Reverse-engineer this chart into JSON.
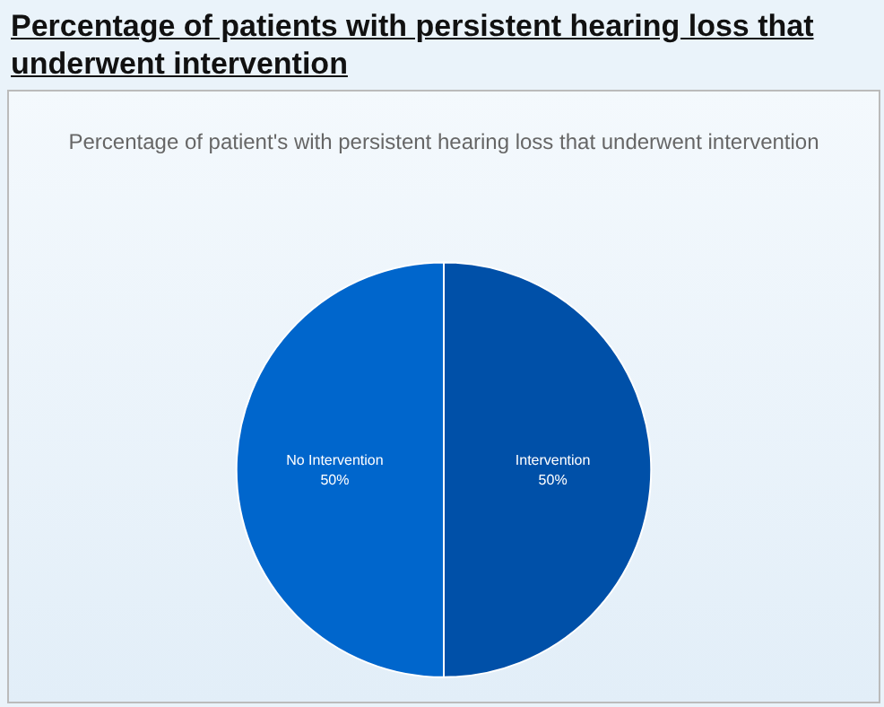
{
  "chart_data": {
    "type": "pie",
    "title": "Percentage of patients with persistent hearing loss that underwent intervention",
    "subtitle": "Percentage of patient's with persistent hearing loss that underwent intervention",
    "categories": [
      "Intervention",
      "No Intervention"
    ],
    "values": [
      50,
      50
    ],
    "colors": [
      "#0050a8",
      "#0066cc"
    ],
    "value_labels": [
      "50%",
      "50%"
    ],
    "legend": false
  }
}
